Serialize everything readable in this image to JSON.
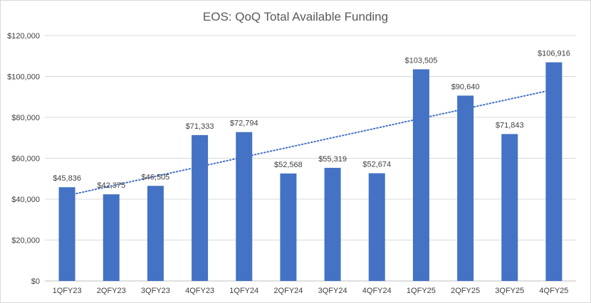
{
  "chart_data": {
    "type": "bar",
    "title": "EOS: QoQ Total Available Funding",
    "categories": [
      "1QFY23",
      "2QFY23",
      "3QFY23",
      "4QFY23",
      "1QFY24",
      "2QFY24",
      "3QFY24",
      "4QFY24",
      "1QFY25",
      "2QFY25",
      "3QFY25",
      "4QFY25"
    ],
    "values": [
      45836,
      42375,
      46505,
      71333,
      72794,
      52568,
      55319,
      52674,
      103505,
      90640,
      71843,
      106916
    ],
    "data_labels": [
      "$45,836",
      "$42,375",
      "$46,505",
      "$71,333",
      "$72,794",
      "$52,568",
      "$55,319",
      "$52,674",
      "$103,505",
      "$90,640",
      "$71,843",
      "$106,916"
    ],
    "ylim": [
      0,
      120000
    ],
    "yticks": [
      0,
      20000,
      40000,
      60000,
      80000,
      100000,
      120000
    ],
    "ytick_labels": [
      "$0",
      "$20,000",
      "$40,000",
      "$60,000",
      "$80,000",
      "$100,000",
      "$120,000"
    ],
    "xlabel": "",
    "ylabel": "",
    "grid": true,
    "legend": "none",
    "trendline": "linear",
    "colors": {
      "bar": "#4472c4",
      "trendline": "#4472c4",
      "grid": "#d9d9d9"
    }
  }
}
